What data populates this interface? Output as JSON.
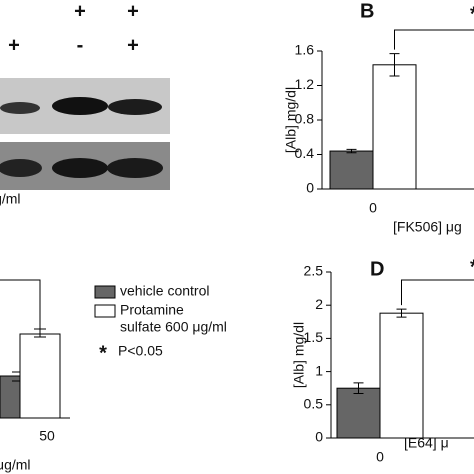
{
  "blot": {
    "row1": [
      "+",
      "+"
    ],
    "row2": [
      "+",
      "-",
      "+"
    ],
    "unit": "μg/ml"
  },
  "panel_c": {
    "category": "50",
    "unit": "μg/ml",
    "star": "*"
  },
  "legend": {
    "items": [
      {
        "color": "#666666",
        "lines": [
          "vehicle control"
        ]
      },
      {
        "color": "#ffffff",
        "lines": [
          "Protamine",
          "sulfate 600 μg/ml"
        ]
      }
    ],
    "star": "*",
    "note": "P<0.05"
  },
  "chart_data": [
    {
      "type": "bar",
      "panel": "B",
      "ylabel": "[Alb] mg/dl",
      "xlabel": "[FK506] μg",
      "star": "*",
      "categories": [
        "0"
      ],
      "ylim": [
        0,
        1.6
      ],
      "yticks": [
        0,
        0.4,
        0.8,
        1.2,
        1.6
      ],
      "series": [
        {
          "color": "#666666",
          "values": [
            0.44
          ],
          "errors": [
            0.02
          ]
        },
        {
          "color": "#ffffff",
          "values": [
            1.44
          ],
          "errors": [
            0.13
          ]
        }
      ]
    },
    {
      "type": "bar",
      "panel": "D",
      "ylabel": "[Alb] mg/dl",
      "xlabel": "[E64] μ",
      "star": "*",
      "categories": [
        "0"
      ],
      "ylim": [
        0,
        2.5
      ],
      "yticks": [
        0,
        0.5,
        1,
        1.5,
        2,
        2.5
      ],
      "series": [
        {
          "color": "#666666",
          "values": [
            0.75
          ],
          "errors": [
            0.08
          ]
        },
        {
          "color": "#ffffff",
          "values": [
            1.88
          ],
          "errors": [
            0.06
          ]
        }
      ]
    }
  ]
}
